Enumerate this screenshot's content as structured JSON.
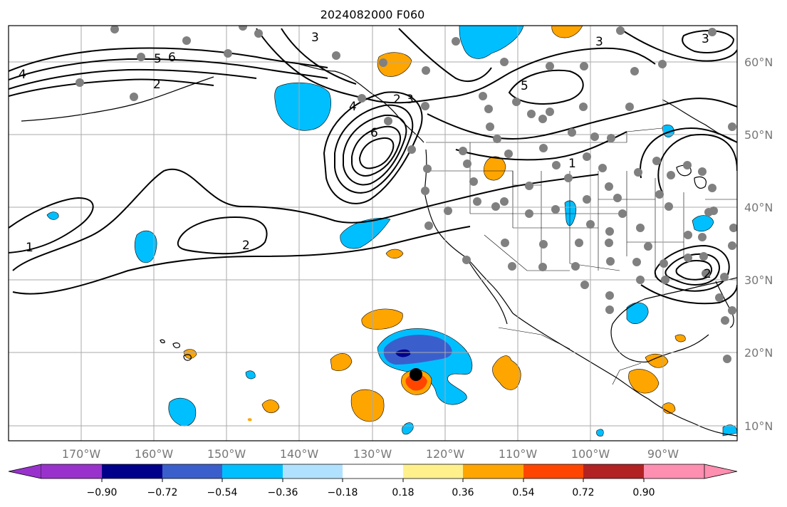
{
  "title": "2024082000 F060",
  "lon_labels": [
    "170°W",
    "160°W",
    "150°W",
    "140°W",
    "130°W",
    "120°W",
    "110°W",
    "100°W",
    "90°W"
  ],
  "lat_labels": [
    "60°N",
    "50°N",
    "40°N",
    "30°N",
    "20°N",
    "10°N"
  ],
  "colorbar": {
    "tick_labels": [
      "−0.90",
      "−0.72",
      "−0.54",
      "−0.36",
      "−0.18",
      "0.18",
      "0.36",
      "0.54",
      "0.72",
      "0.90"
    ],
    "colors": [
      "#9932cc",
      "#00008b",
      "#3a5fcd",
      "#00bfff",
      "#b0e2ff",
      "#ffffff",
      "#fff08c",
      "#ffa500",
      "#ff4500",
      "#b22222",
      "#ff8fb1"
    ]
  },
  "contour_labels": [
    "4",
    "5",
    "6",
    "2",
    "3",
    "6",
    "3",
    "4",
    "2",
    "5",
    "1",
    "2",
    "1",
    "2",
    "3",
    "3"
  ],
  "colors": {
    "gridline": "#aaaaaa",
    "station_dot": "#808080",
    "storm_center": "#000000"
  }
}
